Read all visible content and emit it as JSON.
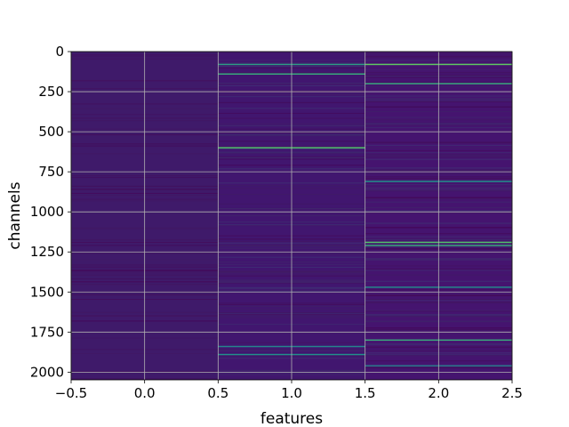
{
  "chart_data": {
    "type": "heatmap",
    "title": "",
    "xlabel": "features",
    "ylabel": "channels",
    "xlim": [
      -0.5,
      2.5
    ],
    "ylim": [
      2048,
      0
    ],
    "y_inverted": true,
    "grid": true,
    "colormap": "viridis",
    "n_channels": 2048,
    "columns": [
      0,
      1,
      2
    ],
    "column_base_colors": [
      "#3f1a6a",
      "#41166f",
      "#45146f"
    ],
    "x_ticks": [
      -0.5,
      0.0,
      0.5,
      1.0,
      1.5,
      2.0,
      2.5
    ],
    "x_tick_labels": [
      "−0.5",
      "0.0",
      "0.5",
      "1.0",
      "1.5",
      "2.0",
      "2.5"
    ],
    "y_ticks": [
      0,
      250,
      500,
      750,
      1000,
      1250,
      1500,
      1750,
      2000
    ],
    "y_tick_labels": [
      "0",
      "250",
      "500",
      "750",
      "1000",
      "1250",
      "1500",
      "1750",
      "2000"
    ],
    "highlight_bands": [
      {
        "column": 1,
        "channel": 80,
        "value": 0.55
      },
      {
        "column": 1,
        "channel": 140,
        "value": 0.6
      },
      {
        "column": 1,
        "channel": 600,
        "value": 0.7
      },
      {
        "column": 1,
        "channel": 1840,
        "value": 0.45
      },
      {
        "column": 1,
        "channel": 1890,
        "value": 0.5
      },
      {
        "column": 2,
        "channel": 80,
        "value": 0.75
      },
      {
        "column": 2,
        "channel": 200,
        "value": 0.6
      },
      {
        "column": 2,
        "channel": 810,
        "value": 0.5
      },
      {
        "column": 2,
        "channel": 1190,
        "value": 0.7
      },
      {
        "column": 2,
        "channel": 1210,
        "value": 0.6
      },
      {
        "column": 2,
        "channel": 1470,
        "value": 0.45
      },
      {
        "column": 2,
        "channel": 1800,
        "value": 0.6
      },
      {
        "column": 2,
        "channel": 1960,
        "value": 0.4
      }
    ]
  }
}
